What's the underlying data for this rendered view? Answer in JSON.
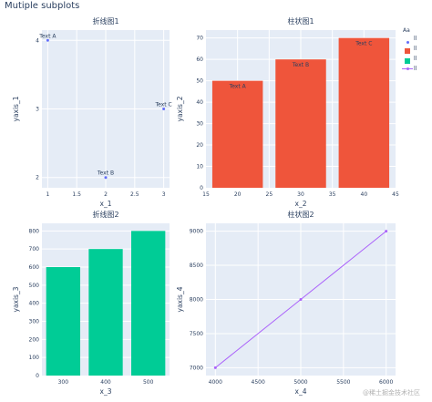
{
  "figure": {
    "title": "Mutiple subplots"
  },
  "legend": {
    "title": "Aa",
    "items": [
      {
        "label": "ll",
        "color": "#636efa",
        "kind": "marker"
      },
      {
        "label": "ll",
        "color": "#ef553b",
        "kind": "box"
      },
      {
        "label": "ll",
        "color": "#00cc96",
        "kind": "box"
      },
      {
        "label": "ll",
        "color": "#ab63fa",
        "kind": "line"
      }
    ]
  },
  "watermark": "@稀土掘金技术社区",
  "colors": {
    "scatter": "#636efa",
    "bar1": "#ef553b",
    "bar2": "#00cc96",
    "line": "#ab63fa",
    "plot_bg": "#e5ecf6"
  },
  "chart_data": [
    {
      "type": "scatter",
      "title": "折线图1",
      "xlabel": "x_1",
      "ylabel": "yaxis_1",
      "xlim": [
        0.9,
        3.1
      ],
      "ylim": [
        1.85,
        4.15
      ],
      "xticks": [
        1,
        1.5,
        2,
        2.5,
        3
      ],
      "yticks": [
        2,
        3,
        4
      ],
      "x": [
        1,
        2,
        3
      ],
      "y": [
        4,
        2,
        3
      ],
      "text": [
        "Text A",
        "Text B",
        "Text C"
      ],
      "color": "#636efa"
    },
    {
      "type": "bar",
      "title": "柱状图1",
      "xlabel": "x_2",
      "ylabel": "yaxis_2",
      "xlim": [
        15,
        45
      ],
      "ylim": [
        0,
        73.7
      ],
      "xticks": [
        15,
        20,
        25,
        30,
        35,
        40,
        45
      ],
      "yticks": [
        0,
        10,
        20,
        30,
        40,
        50,
        60,
        70
      ],
      "x": [
        20,
        30,
        40
      ],
      "y": [
        50,
        60,
        70
      ],
      "text": [
        "Text A",
        "Text B",
        "Text C"
      ],
      "color": "#ef553b"
    },
    {
      "type": "bar",
      "title": "折线图2",
      "xlabel": "x_3",
      "ylabel": "yaxis_3",
      "xlim": [
        250,
        550
      ],
      "ylim": [
        0,
        842
      ],
      "xticks": [
        300,
        400,
        500
      ],
      "yticks": [
        0,
        100,
        200,
        300,
        400,
        500,
        600,
        700,
        800
      ],
      "x": [
        300,
        400,
        500
      ],
      "y": [
        600,
        700,
        800
      ],
      "color": "#00cc96"
    },
    {
      "type": "line",
      "title": "柱状图2",
      "xlabel": "x_4",
      "ylabel": "yaxis_4",
      "xlim": [
        3890,
        6110
      ],
      "ylim": [
        6885,
        9115
      ],
      "xticks": [
        4000,
        4500,
        5000,
        5500,
        6000
      ],
      "yticks": [
        7000,
        7500,
        8000,
        8500,
        9000
      ],
      "x": [
        4000,
        5000,
        6000
      ],
      "y": [
        7000,
        8000,
        9000
      ],
      "color": "#ab63fa"
    }
  ]
}
